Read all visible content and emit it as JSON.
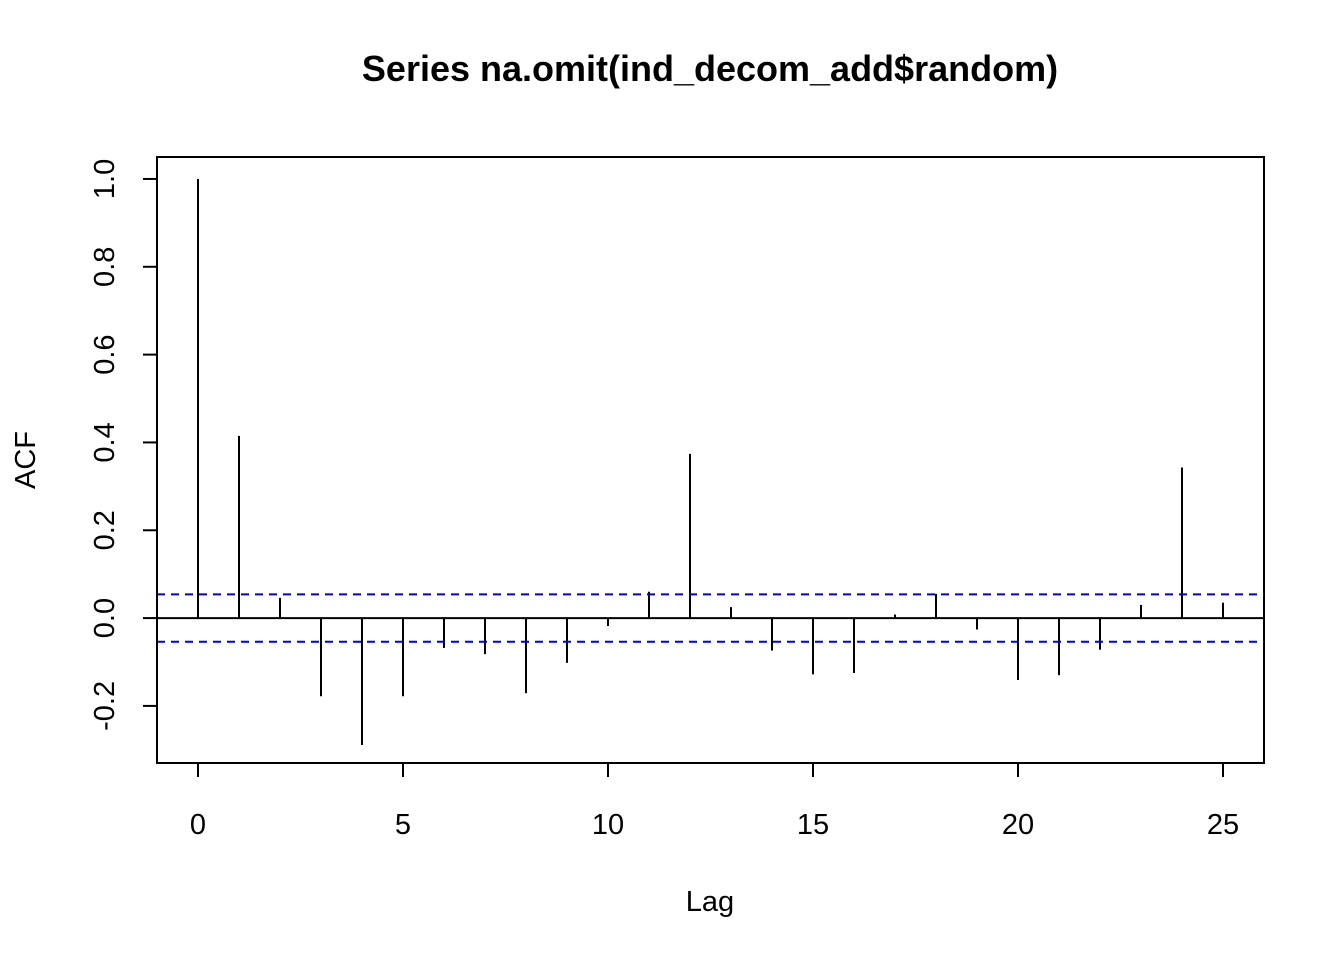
{
  "chart_data": {
    "type": "bar",
    "title": "Series  na.omit(ind_decom_add$random)",
    "xlabel": "Lag",
    "ylabel": "ACF",
    "xlim": [
      -1,
      26
    ],
    "ylim": [
      -0.33,
      1.05
    ],
    "x_ticks": [
      0,
      5,
      10,
      15,
      20,
      25
    ],
    "x_tick_labels": [
      "0",
      "5",
      "10",
      "15",
      "20",
      "25"
    ],
    "y_ticks": [
      -0.2,
      0.0,
      0.2,
      0.4,
      0.6,
      0.8,
      1.0
    ],
    "y_tick_labels": [
      "-0.2",
      "0.0",
      "0.2",
      "0.4",
      "0.6",
      "0.8",
      "1.0"
    ],
    "lags": [
      0,
      1,
      2,
      3,
      4,
      5,
      6,
      7,
      8,
      9,
      10,
      11,
      12,
      13,
      14,
      15,
      16,
      17,
      18,
      19,
      20,
      21,
      22,
      23,
      24,
      25
    ],
    "acf": [
      1.0,
      0.415,
      0.046,
      -0.178,
      -0.289,
      -0.178,
      -0.068,
      -0.082,
      -0.171,
      -0.102,
      -0.018,
      0.06,
      0.374,
      0.025,
      -0.074,
      -0.128,
      -0.125,
      0.008,
      0.055,
      -0.026,
      -0.141,
      -0.13,
      -0.072,
      0.03,
      0.343,
      0.035
    ],
    "confidence_limit": 0.054,
    "grid": false,
    "colors": {
      "spikes": "#000000",
      "zero_line": "#000000",
      "confidence_lines": "#0000CC",
      "frame": "#000000"
    }
  }
}
